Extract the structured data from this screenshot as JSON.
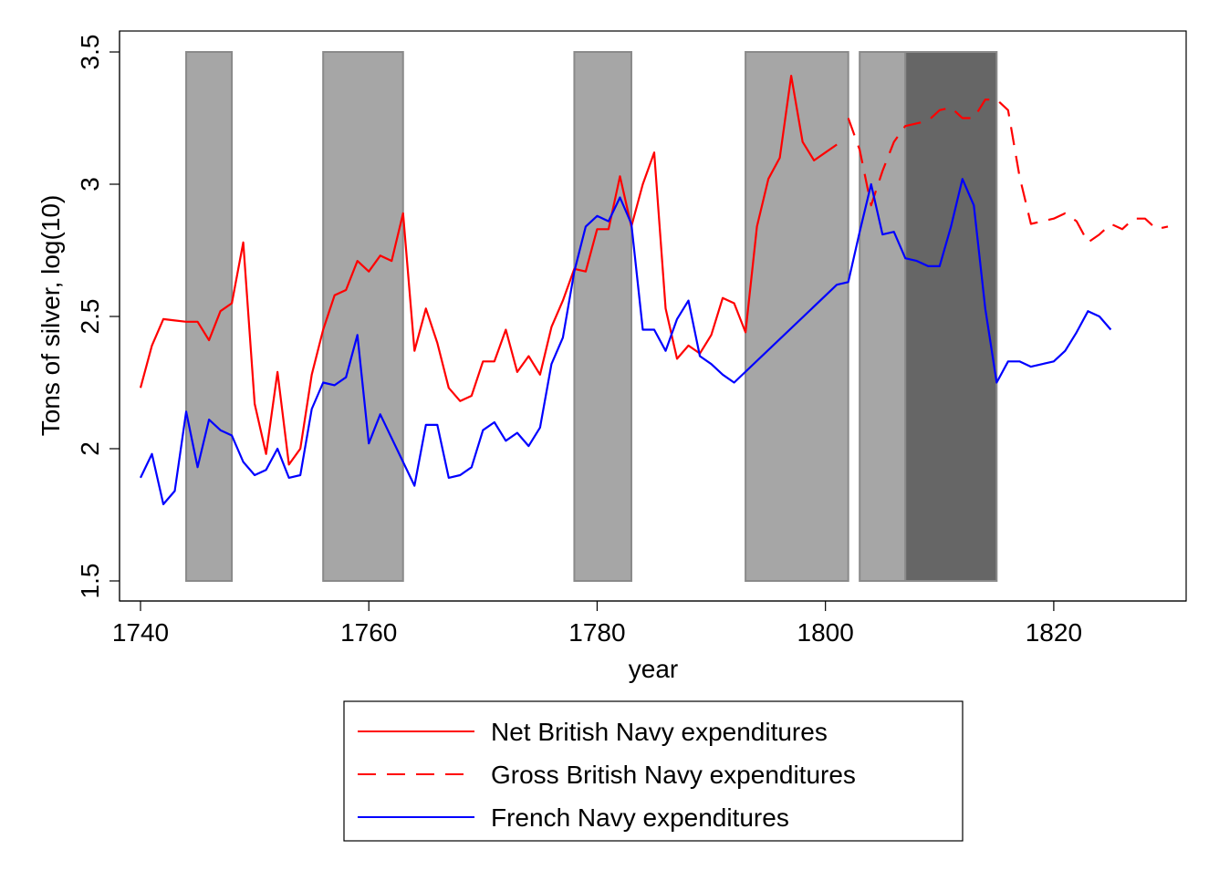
{
  "chart_data": {
    "type": "line",
    "title": "",
    "xlabel": "year",
    "ylabel": "Tons of silver, log(10)",
    "xlim": [
      1739,
      1832
    ],
    "ylim": [
      1.45,
      3.55
    ],
    "xticks": [
      1740,
      1760,
      1780,
      1800,
      1820
    ],
    "xtick_labels": [
      "1740",
      "1760",
      "1780",
      "1800",
      "1820"
    ],
    "yticks": [
      1.5,
      2,
      2.5,
      3,
      3.5
    ],
    "ytick_labels": [
      "1.5",
      "2",
      "2.5",
      "3",
      "3.5"
    ],
    "grid": false,
    "legend_position": "bottom",
    "war_shading": [
      {
        "start": 1744,
        "end": 1748,
        "shade": "light"
      },
      {
        "start": 1756,
        "end": 1763,
        "shade": "light"
      },
      {
        "start": 1778,
        "end": 1783,
        "shade": "light"
      },
      {
        "start": 1793,
        "end": 1802,
        "shade": "light"
      },
      {
        "start": 1803,
        "end": 1807,
        "shade": "light"
      },
      {
        "start": 1807,
        "end": 1815,
        "shade": "dark"
      }
    ],
    "shading_colors": {
      "light": "#a6a6a6",
      "dark": "#666666",
      "edge": "#8a8a8a"
    },
    "series": [
      {
        "name": "Net British Navy expenditures",
        "color": "#ff0000",
        "dash": "solid",
        "points": [
          [
            1740,
            2.23
          ],
          [
            1741,
            2.39
          ],
          [
            1742,
            2.49
          ],
          [
            1743,
            2.485
          ],
          [
            1744,
            2.48
          ],
          [
            1745,
            2.48
          ],
          [
            1746,
            2.41
          ],
          [
            1747,
            2.52
          ],
          [
            1748,
            2.55
          ],
          [
            1749,
            2.78
          ],
          [
            1750,
            2.17
          ],
          [
            1751,
            1.98
          ],
          [
            1752,
            2.29
          ],
          [
            1753,
            1.94
          ],
          [
            1754,
            2.0
          ],
          [
            1755,
            2.28
          ],
          [
            1756,
            2.45
          ],
          [
            1757,
            2.58
          ],
          [
            1758,
            2.6
          ],
          [
            1759,
            2.71
          ],
          [
            1760,
            2.67
          ],
          [
            1761,
            2.73
          ],
          [
            1762,
            2.71
          ],
          [
            1763,
            2.89
          ],
          [
            1764,
            2.37
          ],
          [
            1765,
            2.53
          ],
          [
            1766,
            2.4
          ],
          [
            1767,
            2.23
          ],
          [
            1768,
            2.18
          ],
          [
            1769,
            2.2
          ],
          [
            1770,
            2.33
          ],
          [
            1771,
            2.33
          ],
          [
            1772,
            2.45
          ],
          [
            1773,
            2.29
          ],
          [
            1774,
            2.35
          ],
          [
            1775,
            2.28
          ],
          [
            1776,
            2.46
          ],
          [
            1777,
            2.56
          ],
          [
            1778,
            2.68
          ],
          [
            1779,
            2.67
          ],
          [
            1780,
            2.83
          ],
          [
            1781,
            2.83
          ],
          [
            1782,
            3.03
          ],
          [
            1783,
            2.84
          ],
          [
            1784,
            3.0
          ],
          [
            1785,
            3.12
          ],
          [
            1786,
            2.53
          ],
          [
            1787,
            2.34
          ],
          [
            1788,
            2.39
          ],
          [
            1789,
            2.36
          ],
          [
            1790,
            2.43
          ],
          [
            1791,
            2.57
          ],
          [
            1792,
            2.55
          ],
          [
            1793,
            2.44
          ],
          [
            1794,
            2.84
          ],
          [
            1795,
            3.02
          ],
          [
            1796,
            3.1
          ],
          [
            1797,
            3.41
          ],
          [
            1798,
            3.16
          ],
          [
            1799,
            3.09
          ],
          [
            1800,
            3.12
          ],
          [
            1801,
            3.15
          ]
        ]
      },
      {
        "name": "Gross British Navy expenditures",
        "color": "#ff0000",
        "dash": "dashed",
        "points": [
          [
            1802,
            3.25
          ],
          [
            1803,
            3.13
          ],
          [
            1804,
            2.92
          ],
          [
            1805,
            3.05
          ],
          [
            1806,
            3.16
          ],
          [
            1807,
            3.22
          ],
          [
            1808,
            3.23
          ],
          [
            1809,
            3.24
          ],
          [
            1810,
            3.28
          ],
          [
            1811,
            3.29
          ],
          [
            1812,
            3.25
          ],
          [
            1813,
            3.25
          ],
          [
            1814,
            3.32
          ],
          [
            1815,
            3.32
          ],
          [
            1816,
            3.28
          ],
          [
            1817,
            3.03
          ],
          [
            1818,
            2.85
          ],
          [
            1819,
            2.86
          ],
          [
            1820,
            2.87
          ],
          [
            1821,
            2.89
          ],
          [
            1822,
            2.86
          ],
          [
            1823,
            2.78
          ],
          [
            1824,
            2.81
          ],
          [
            1825,
            2.85
          ],
          [
            1826,
            2.83
          ],
          [
            1827,
            2.87
          ],
          [
            1828,
            2.87
          ],
          [
            1829,
            2.83
          ],
          [
            1830,
            2.84
          ]
        ]
      },
      {
        "name": "French Navy expenditures",
        "color": "#0000ff",
        "dash": "solid",
        "points": [
          [
            1740,
            1.89
          ],
          [
            1741,
            1.98
          ],
          [
            1742,
            1.79
          ],
          [
            1743,
            1.84
          ],
          [
            1744,
            2.14
          ],
          [
            1745,
            1.93
          ],
          [
            1746,
            2.11
          ],
          [
            1747,
            2.07
          ],
          [
            1748,
            2.05
          ],
          [
            1749,
            1.95
          ],
          [
            1750,
            1.9
          ],
          [
            1751,
            1.92
          ],
          [
            1752,
            2.0
          ],
          [
            1753,
            1.89
          ],
          [
            1754,
            1.9
          ],
          [
            1755,
            2.15
          ],
          [
            1756,
            2.25
          ],
          [
            1757,
            2.24
          ],
          [
            1758,
            2.27
          ],
          [
            1759,
            2.43
          ],
          [
            1760,
            2.02
          ],
          [
            1761,
            2.13
          ],
          [
            1764,
            1.86
          ],
          [
            1765,
            2.09
          ],
          [
            1766,
            2.09
          ],
          [
            1767,
            1.89
          ],
          [
            1768,
            1.9
          ],
          [
            1769,
            1.93
          ],
          [
            1770,
            2.07
          ],
          [
            1771,
            2.1
          ],
          [
            1772,
            2.03
          ],
          [
            1773,
            2.06
          ],
          [
            1774,
            2.01
          ],
          [
            1775,
            2.08
          ],
          [
            1776,
            2.32
          ],
          [
            1777,
            2.42
          ],
          [
            1778,
            2.67
          ],
          [
            1779,
            2.84
          ],
          [
            1780,
            2.88
          ],
          [
            1781,
            2.86
          ],
          [
            1782,
            2.95
          ],
          [
            1783,
            2.85
          ],
          [
            1784,
            2.45
          ],
          [
            1785,
            2.45
          ],
          [
            1786,
            2.37
          ],
          [
            1787,
            2.49
          ],
          [
            1788,
            2.56
          ],
          [
            1789,
            2.35
          ],
          [
            1790,
            2.32
          ],
          [
            1791,
            2.28
          ],
          [
            1792,
            2.25
          ],
          [
            1801,
            2.62
          ],
          [
            1802,
            2.63
          ],
          [
            1803,
            2.82
          ],
          [
            1804,
            3.0
          ],
          [
            1805,
            2.81
          ],
          [
            1806,
            2.82
          ],
          [
            1807,
            2.72
          ],
          [
            1808,
            2.71
          ],
          [
            1809,
            2.69
          ],
          [
            1810,
            2.69
          ],
          [
            1811,
            2.84
          ],
          [
            1812,
            3.02
          ],
          [
            1813,
            2.92
          ],
          [
            1814,
            2.53
          ],
          [
            1815,
            2.25
          ],
          [
            1816,
            2.33
          ],
          [
            1817,
            2.33
          ],
          [
            1818,
            2.31
          ],
          [
            1819,
            2.32
          ],
          [
            1820,
            2.33
          ],
          [
            1821,
            2.37
          ],
          [
            1822,
            2.44
          ],
          [
            1823,
            2.52
          ],
          [
            1824,
            2.5
          ],
          [
            1825,
            2.45
          ]
        ]
      }
    ]
  }
}
